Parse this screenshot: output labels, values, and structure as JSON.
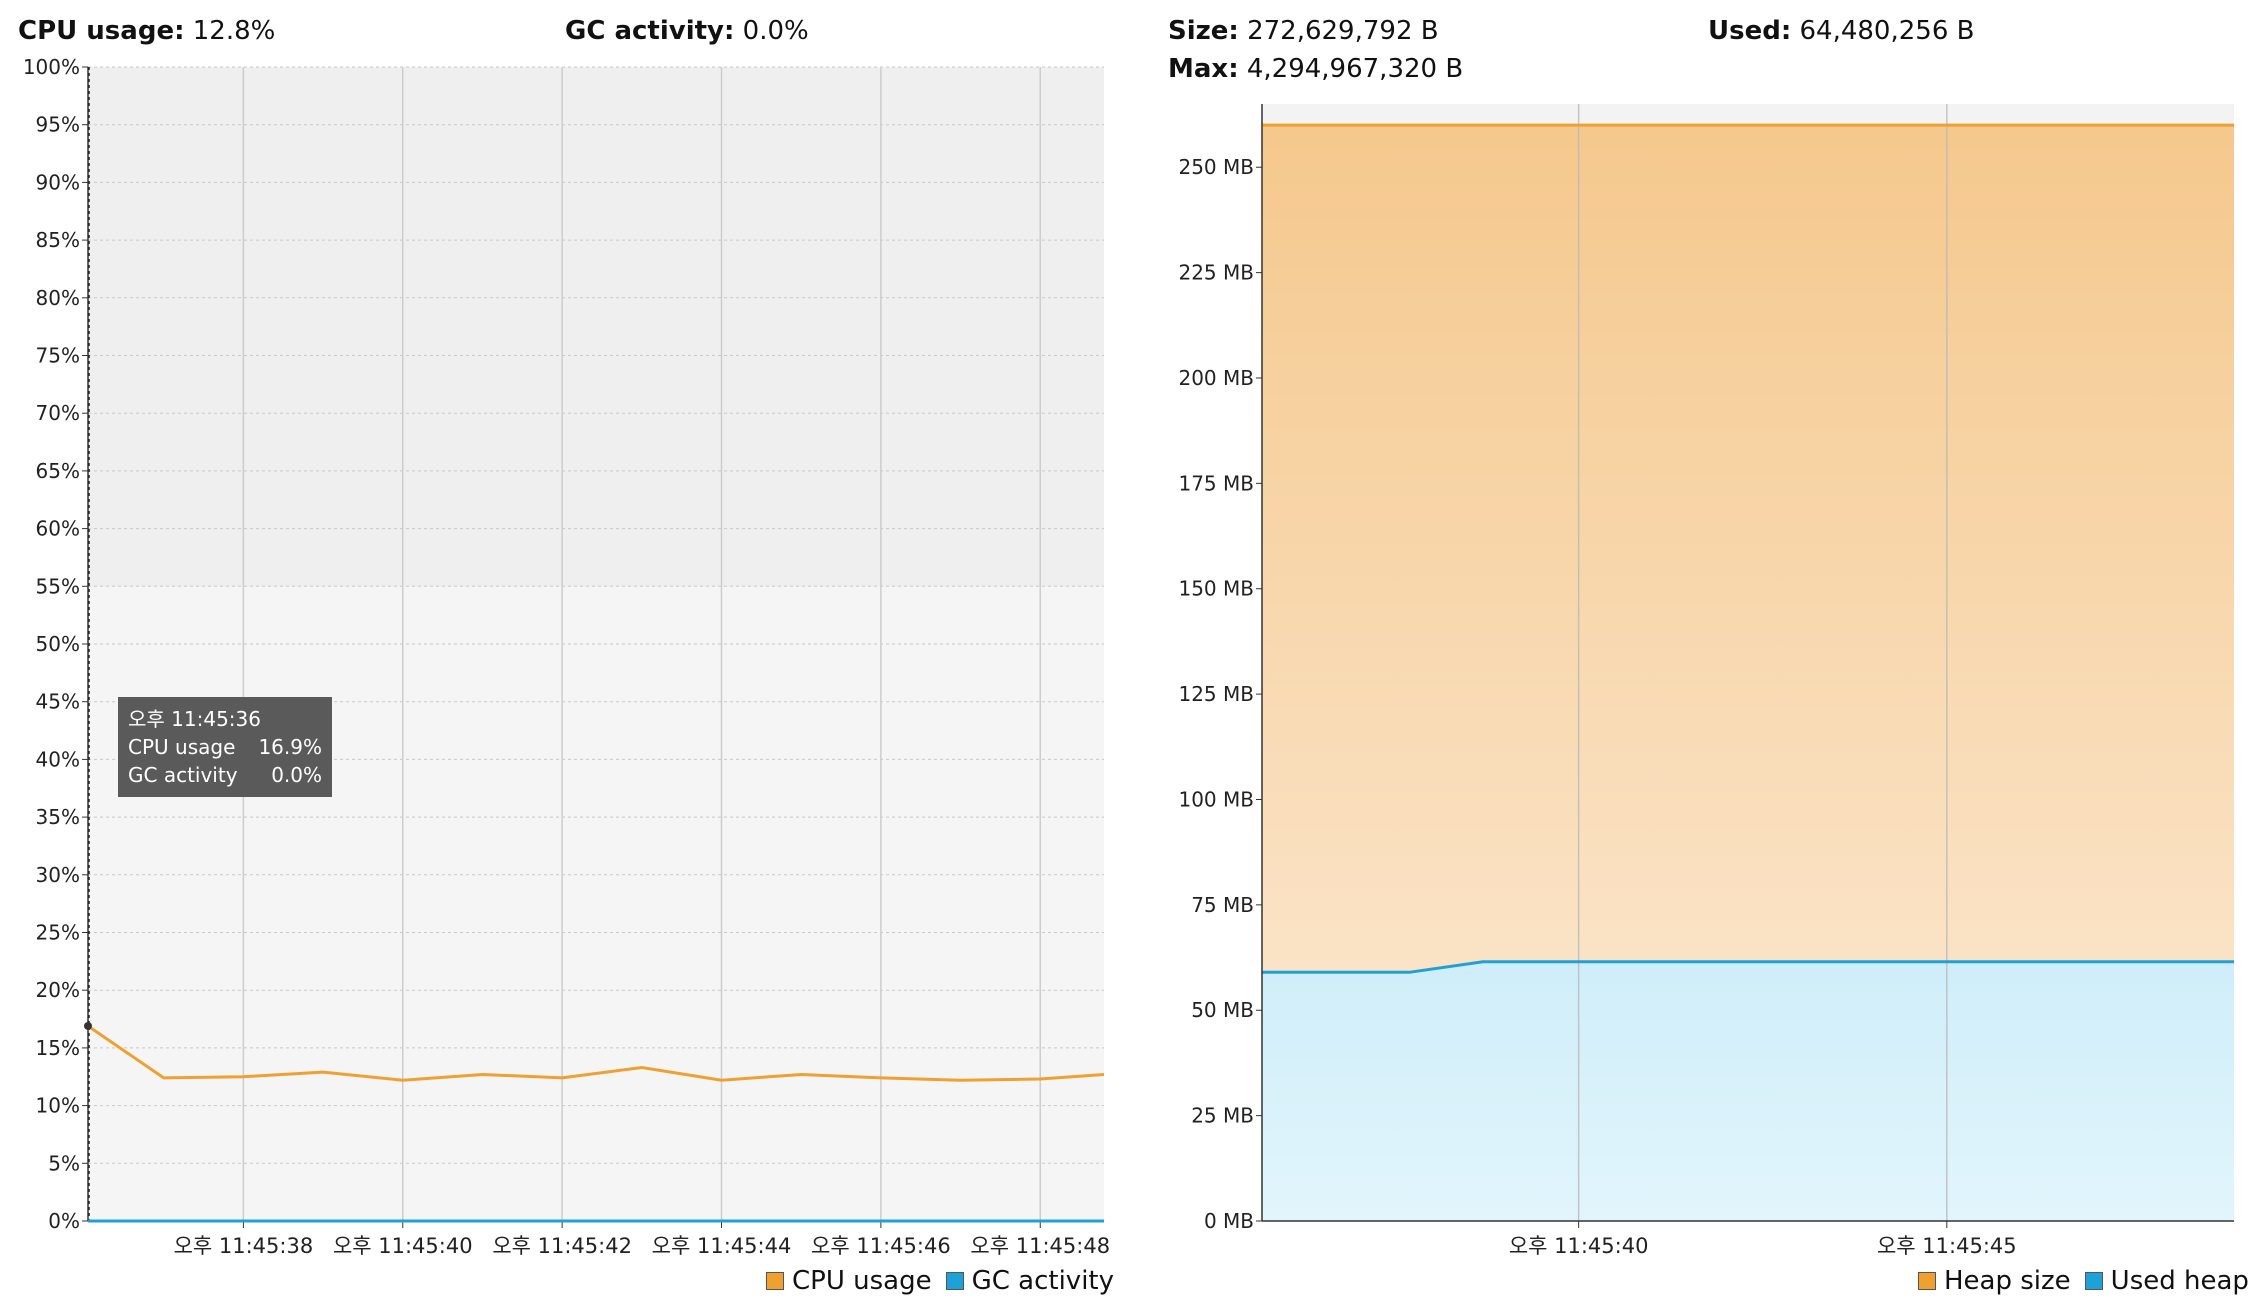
{
  "cpu_panel": {
    "cpu_label": "CPU usage:",
    "cpu_value": "12.8%",
    "gc_label": "GC activity:",
    "gc_value": "0.0%",
    "tooltip": {
      "time": "오후 11:45:36",
      "cpu_label": "CPU usage",
      "cpu_value": "16.9%",
      "gc_label": "GC activity",
      "gc_value": "0.0%"
    },
    "legend": [
      {
        "label": "CPU usage",
        "color": "#f0a030"
      },
      {
        "label": "GC activity",
        "color": "#1ea1d6"
      }
    ]
  },
  "heap_panel": {
    "size_label": "Size:",
    "size_value": "272,629,792 B",
    "used_label": "Used:",
    "used_value": "64,480,256 B",
    "max_label": "Max:",
    "max_value": "4,294,967,320 B",
    "legend": [
      {
        "label": "Heap size",
        "color": "#f0a030"
      },
      {
        "label": "Used heap",
        "color": "#1ea1d6"
      }
    ]
  },
  "chart_data": [
    {
      "type": "line",
      "ylim": [
        0,
        100
      ],
      "y_ticks": [
        "0%",
        "5%",
        "10%",
        "15%",
        "20%",
        "25%",
        "30%",
        "35%",
        "40%",
        "45%",
        "50%",
        "55%",
        "60%",
        "65%",
        "70%",
        "75%",
        "80%",
        "85%",
        "90%",
        "95%",
        "100%"
      ],
      "x_ticks": [
        "오후 11:45:38",
        "오후 11:45:40",
        "오후 11:45:42",
        "오후 11:45:44",
        "오후 11:45:46",
        "오후 11:45:48"
      ],
      "x_tick_seconds": [
        38,
        40,
        42,
        44,
        46,
        48
      ],
      "xlim_seconds": [
        36.05,
        48.8
      ],
      "series": [
        {
          "name": "CPU usage",
          "color": "#f0a030",
          "x_seconds": [
            36.05,
            37.0,
            38.0,
            39.0,
            40.0,
            41.0,
            42.0,
            43.0,
            44.0,
            45.0,
            46.0,
            47.0,
            48.0,
            48.8
          ],
          "values": [
            16.9,
            12.4,
            12.5,
            12.9,
            12.2,
            12.7,
            12.4,
            13.3,
            12.2,
            12.7,
            12.4,
            12.2,
            12.3,
            12.7
          ]
        },
        {
          "name": "GC activity",
          "color": "#1ea1d6",
          "x_seconds": [
            36.05,
            48.8
          ],
          "values": [
            0,
            0
          ]
        }
      ]
    },
    {
      "type": "area",
      "ylim": [
        0,
        265
      ],
      "y_unit": "MB",
      "y_ticks": [
        "0 MB",
        "25 MB",
        "50 MB",
        "75 MB",
        "100 MB",
        "125 MB",
        "150 MB",
        "175 MB",
        "200 MB",
        "225 MB",
        "250 MB"
      ],
      "x_ticks": [
        "오후 11:45:40",
        "오후 11:45:45"
      ],
      "x_tick_seconds": [
        40,
        45
      ],
      "xlim_seconds": [
        35.7,
        48.9
      ],
      "series": [
        {
          "name": "Heap size",
          "color": "#f0a030",
          "x_seconds": [
            35.7,
            48.9
          ],
          "values": [
            260,
            260
          ]
        },
        {
          "name": "Used heap",
          "color": "#1ea1d6",
          "x_seconds": [
            35.7,
            37.7,
            38.7,
            48.9
          ],
          "values": [
            59,
            59,
            61.5,
            61.5
          ]
        }
      ]
    }
  ]
}
